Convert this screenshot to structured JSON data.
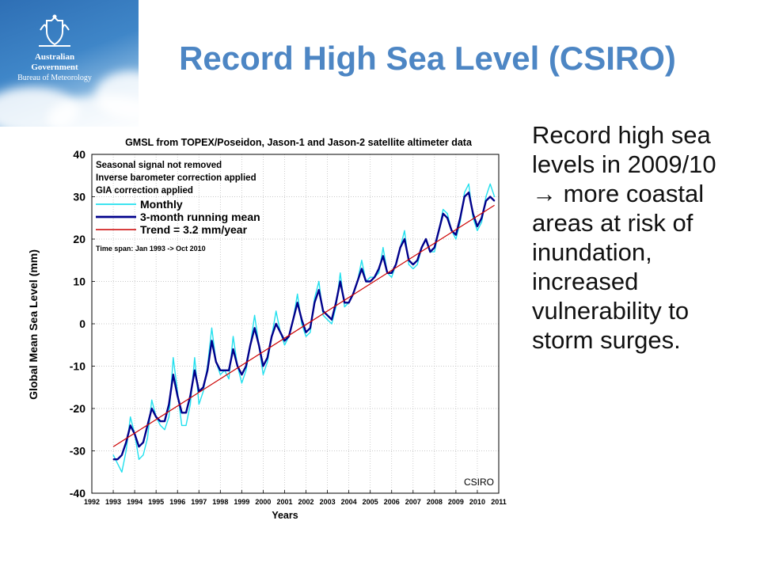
{
  "header": {
    "org_name": "Australian Government",
    "org_bureau": "Bureau of Meteorology",
    "title": "Record High Sea Level (CSIRO)"
  },
  "body": {
    "text": "Record high sea levels in 2009/10 → more coastal areas at risk of inundation, increased vulnerability to storm surges."
  },
  "colors": {
    "title": "#4d86c4",
    "monthly": "#22e0ee",
    "running_mean": "#00008b",
    "trend": "#cc0000"
  },
  "chart_data": {
    "type": "line",
    "title": "GMSL from TOPEX/Poseidon, Jason-1 and Jason-2 satellite altimeter data",
    "xlabel": "Years",
    "ylabel": "Global Mean Sea Level (mm)",
    "xlim": [
      1992,
      2011
    ],
    "ylim": [
      -40,
      40
    ],
    "x_ticks": [
      "1992",
      "1993",
      "1994",
      "1995",
      "1996",
      "1997",
      "1998",
      "1999",
      "2000",
      "2001",
      "2002",
      "2003",
      "2004",
      "2005",
      "2006",
      "2007",
      "2008",
      "2009",
      "2010",
      "2011"
    ],
    "y_ticks": [
      "40",
      "30",
      "20",
      "10",
      "0",
      "-10",
      "-20",
      "-30",
      "-40"
    ],
    "grid": true,
    "annotations": [
      "Seasonal signal not removed",
      "Inverse barometer correction applied",
      "GIA correction applied",
      "Time span: Jan 1993 -> Oct 2010"
    ],
    "credit": "CSIRO",
    "legend_position": "top-left",
    "series": [
      {
        "name": "Monthly",
        "x": [
          1993.0,
          1993.2,
          1993.4,
          1993.6,
          1993.8,
          1994.0,
          1994.2,
          1994.4,
          1994.6,
          1994.8,
          1995.0,
          1995.2,
          1995.4,
          1995.6,
          1995.8,
          1996.0,
          1996.2,
          1996.4,
          1996.6,
          1996.8,
          1997.0,
          1997.2,
          1997.4,
          1997.6,
          1997.8,
          1998.0,
          1998.2,
          1998.4,
          1998.6,
          1998.8,
          1999.0,
          1999.2,
          1999.4,
          1999.6,
          1999.8,
          2000.0,
          2000.2,
          2000.4,
          2000.6,
          2000.8,
          2001.0,
          2001.2,
          2001.4,
          2001.6,
          2001.8,
          2002.0,
          2002.2,
          2002.4,
          2002.6,
          2002.8,
          2003.0,
          2003.2,
          2003.4,
          2003.6,
          2003.8,
          2004.0,
          2004.2,
          2004.4,
          2004.6,
          2004.8,
          2005.0,
          2005.2,
          2005.4,
          2005.6,
          2005.8,
          2006.0,
          2006.2,
          2006.4,
          2006.6,
          2006.8,
          2007.0,
          2007.2,
          2007.4,
          2007.6,
          2007.8,
          2008.0,
          2008.2,
          2008.4,
          2008.6,
          2008.8,
          2009.0,
          2009.2,
          2009.4,
          2009.6,
          2009.8,
          2010.0,
          2010.2,
          2010.4,
          2010.6,
          2010.8
        ],
        "values": [
          -31,
          -33,
          -35,
          -30,
          -22,
          -26,
          -32,
          -31,
          -27,
          -18,
          -22,
          -24,
          -25,
          -22,
          -8,
          -16,
          -24,
          -24,
          -19,
          -8,
          -19,
          -16,
          -10,
          -1,
          -9,
          -12,
          -11,
          -13,
          -3,
          -10,
          -14,
          -11,
          -5,
          2,
          -5,
          -12,
          -9,
          -3,
          3,
          -2,
          -5,
          -3,
          1,
          7,
          0,
          -3,
          -2,
          6,
          10,
          2,
          1,
          0,
          4,
          12,
          4,
          5,
          7,
          10,
          15,
          10,
          11,
          11,
          12,
          18,
          12,
          11,
          14,
          18,
          22,
          14,
          13,
          14,
          18,
          20,
          17,
          17,
          22,
          27,
          26,
          22,
          20,
          24,
          31,
          33,
          25,
          22,
          24,
          30,
          33,
          30
        ]
      },
      {
        "name": "3-month running mean",
        "x": [
          1993.0,
          1993.2,
          1993.4,
          1993.6,
          1993.8,
          1994.0,
          1994.2,
          1994.4,
          1994.6,
          1994.8,
          1995.0,
          1995.2,
          1995.4,
          1995.6,
          1995.8,
          1996.0,
          1996.2,
          1996.4,
          1996.6,
          1996.8,
          1997.0,
          1997.2,
          1997.4,
          1997.6,
          1997.8,
          1998.0,
          1998.2,
          1998.4,
          1998.6,
          1998.8,
          1999.0,
          1999.2,
          1999.4,
          1999.6,
          1999.8,
          2000.0,
          2000.2,
          2000.4,
          2000.6,
          2000.8,
          2001.0,
          2001.2,
          2001.4,
          2001.6,
          2001.8,
          2002.0,
          2002.2,
          2002.4,
          2002.6,
          2002.8,
          2003.0,
          2003.2,
          2003.4,
          2003.6,
          2003.8,
          2004.0,
          2004.2,
          2004.4,
          2004.6,
          2004.8,
          2005.0,
          2005.2,
          2005.4,
          2005.6,
          2005.8,
          2006.0,
          2006.2,
          2006.4,
          2006.6,
          2006.8,
          2007.0,
          2007.2,
          2007.4,
          2007.6,
          2007.8,
          2008.0,
          2008.2,
          2008.4,
          2008.6,
          2008.8,
          2009.0,
          2009.2,
          2009.4,
          2009.6,
          2009.8,
          2010.0,
          2010.2,
          2010.4,
          2010.6,
          2010.8
        ],
        "values": [
          -32,
          -32,
          -31,
          -28,
          -24,
          -26,
          -29,
          -28,
          -24,
          -20,
          -22,
          -23,
          -23,
          -19,
          -12,
          -17,
          -21,
          -21,
          -17,
          -11,
          -16,
          -15,
          -11,
          -4,
          -9,
          -11,
          -11,
          -11,
          -6,
          -10,
          -12,
          -10,
          -5,
          -1,
          -5,
          -10,
          -8,
          -3,
          0,
          -2,
          -4,
          -3,
          1,
          5,
          1,
          -2,
          -1,
          5,
          8,
          3,
          2,
          1,
          5,
          10,
          5,
          5,
          7,
          10,
          13,
          10,
          10,
          11,
          13,
          16,
          12,
          12,
          14,
          18,
          20,
          15,
          14,
          15,
          18,
          20,
          17,
          18,
          22,
          26,
          25,
          22,
          21,
          25,
          30,
          31,
          26,
          23,
          25,
          29,
          30,
          29
        ]
      },
      {
        "name": "Trend = 3.2 mm/year",
        "x": [
          1993.0,
          2010.8
        ],
        "values": [
          -29,
          28
        ]
      }
    ]
  }
}
